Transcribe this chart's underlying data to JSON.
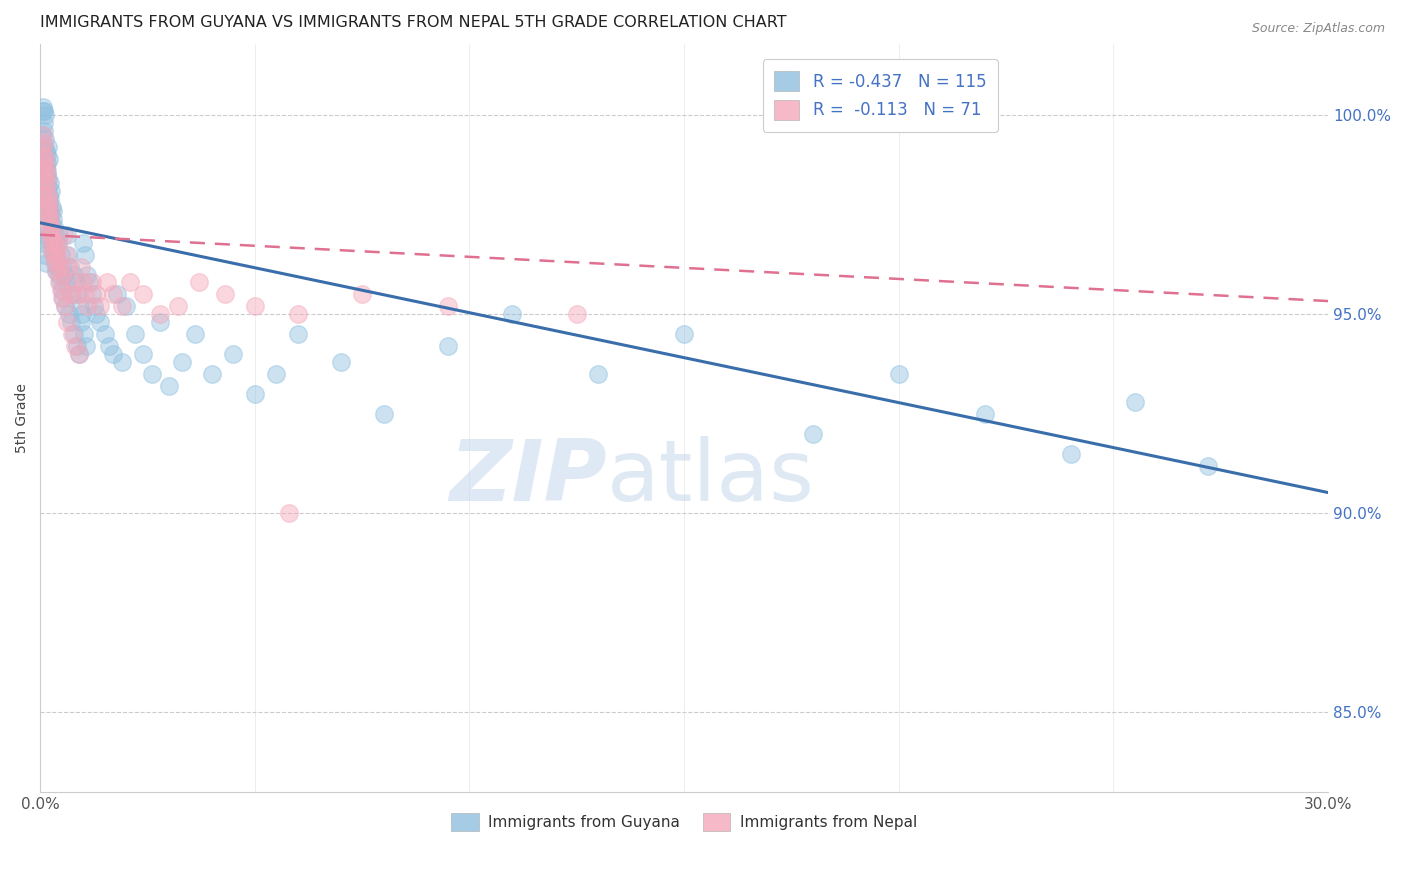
{
  "title": "IMMIGRANTS FROM GUYANA VS IMMIGRANTS FROM NEPAL 5TH GRADE CORRELATION CHART",
  "source": "Source: ZipAtlas.com",
  "ylabel": "5th Grade",
  "watermark_zip": "ZIP",
  "watermark_atlas": "atlas",
  "xlim": [
    0.0,
    30.0
  ],
  "ylim": [
    83.0,
    101.8
  ],
  "yticks": [
    85.0,
    90.0,
    95.0,
    100.0
  ],
  "ytick_labels": [
    "85.0%",
    "90.0%",
    "95.0%",
    "100.0%"
  ],
  "guyana_R": -0.437,
  "guyana_N": 115,
  "nepal_R": -0.113,
  "nepal_N": 71,
  "guyana_color": "#8FBFDF",
  "nepal_color": "#F4A8BA",
  "guyana_line_color": "#3A6EAB",
  "nepal_line_color": "#E07090",
  "legend_label_guyana": "Immigrants from Guyana",
  "legend_label_nepal": "Immigrants from Nepal",
  "guyana_x": [
    0.05,
    0.06,
    0.07,
    0.08,
    0.09,
    0.1,
    0.1,
    0.11,
    0.12,
    0.12,
    0.13,
    0.14,
    0.15,
    0.15,
    0.16,
    0.17,
    0.18,
    0.18,
    0.19,
    0.2,
    0.2,
    0.21,
    0.22,
    0.22,
    0.23,
    0.24,
    0.25,
    0.25,
    0.26,
    0.27,
    0.28,
    0.29,
    0.3,
    0.3,
    0.31,
    0.32,
    0.33,
    0.34,
    0.35,
    0.36,
    0.37,
    0.38,
    0.4,
    0.42,
    0.43,
    0.45,
    0.47,
    0.48,
    0.5,
    0.52,
    0.54,
    0.55,
    0.57,
    0.6,
    0.62,
    0.65,
    0.67,
    0.7,
    0.72,
    0.75,
    0.78,
    0.8,
    0.83,
    0.85,
    0.88,
    0.9,
    0.92,
    0.95,
    0.98,
    1.0,
    1.02,
    1.05,
    1.08,
    1.1,
    1.15,
    1.2,
    1.25,
    1.3,
    1.4,
    1.5,
    1.6,
    1.7,
    1.8,
    1.9,
    2.0,
    2.2,
    2.4,
    2.6,
    2.8,
    3.0,
    3.3,
    3.6,
    4.0,
    4.5,
    5.0,
    5.5,
    6.0,
    7.0,
    8.0,
    9.5,
    11.0,
    13.0,
    15.0,
    18.0,
    20.0,
    22.0,
    24.0,
    25.5,
    27.2,
    0.08,
    0.09,
    0.1,
    0.11,
    0.13,
    0.14,
    0.16
  ],
  "guyana_y": [
    99.5,
    100.1,
    100.2,
    100.1,
    99.8,
    99.6,
    99.2,
    100.0,
    99.4,
    98.9,
    99.1,
    98.7,
    99.0,
    98.5,
    98.8,
    98.6,
    98.4,
    99.2,
    98.2,
    98.0,
    98.9,
    97.8,
    97.6,
    98.3,
    97.5,
    97.9,
    97.3,
    98.1,
    97.1,
    97.7,
    97.0,
    97.4,
    96.8,
    97.6,
    96.6,
    97.2,
    96.5,
    97.0,
    96.3,
    96.8,
    96.1,
    96.5,
    96.2,
    96.8,
    96.0,
    97.0,
    95.8,
    96.5,
    95.6,
    96.2,
    95.4,
    96.0,
    95.2,
    95.8,
    97.0,
    96.5,
    95.0,
    96.2,
    94.8,
    95.5,
    96.0,
    94.5,
    95.8,
    94.2,
    95.5,
    94.0,
    95.2,
    94.8,
    95.0,
    96.8,
    94.5,
    96.5,
    94.2,
    96.0,
    95.8,
    95.5,
    95.2,
    95.0,
    94.8,
    94.5,
    94.2,
    94.0,
    95.5,
    93.8,
    95.2,
    94.5,
    94.0,
    93.5,
    94.8,
    93.2,
    93.8,
    94.5,
    93.5,
    94.0,
    93.0,
    93.5,
    94.5,
    93.8,
    92.5,
    94.2,
    95.0,
    93.5,
    94.5,
    92.0,
    93.5,
    92.5,
    91.5,
    92.8,
    91.2,
    97.2,
    96.8,
    97.5,
    96.5,
    97.0,
    96.3,
    96.9
  ],
  "nepal_x": [
    0.05,
    0.06,
    0.07,
    0.08,
    0.09,
    0.1,
    0.1,
    0.11,
    0.12,
    0.13,
    0.14,
    0.15,
    0.15,
    0.16,
    0.17,
    0.18,
    0.19,
    0.2,
    0.21,
    0.22,
    0.23,
    0.24,
    0.25,
    0.26,
    0.27,
    0.28,
    0.3,
    0.32,
    0.34,
    0.36,
    0.38,
    0.4,
    0.42,
    0.44,
    0.46,
    0.48,
    0.5,
    0.52,
    0.55,
    0.58,
    0.6,
    0.63,
    0.66,
    0.7,
    0.74,
    0.78,
    0.82,
    0.86,
    0.9,
    0.95,
    1.0,
    1.05,
    1.1,
    1.2,
    1.3,
    1.4,
    1.55,
    1.7,
    1.9,
    2.1,
    2.4,
    2.8,
    3.2,
    3.7,
    4.3,
    5.0,
    6.0,
    7.5,
    9.5,
    12.5,
    5.8
  ],
  "nepal_y": [
    99.2,
    99.5,
    98.8,
    99.0,
    98.6,
    99.3,
    98.4,
    98.9,
    98.2,
    98.7,
    98.0,
    98.5,
    97.8,
    98.3,
    97.6,
    98.0,
    97.4,
    97.8,
    97.2,
    97.6,
    97.0,
    97.4,
    96.8,
    97.2,
    96.6,
    97.0,
    96.5,
    96.8,
    96.3,
    96.6,
    96.1,
    96.4,
    96.8,
    95.8,
    96.2,
    95.6,
    96.0,
    95.4,
    97.0,
    95.2,
    96.5,
    94.8,
    96.2,
    95.5,
    94.5,
    95.8,
    94.2,
    95.5,
    94.0,
    96.2,
    95.8,
    95.5,
    95.2,
    95.8,
    95.5,
    95.2,
    95.8,
    95.5,
    95.2,
    95.8,
    95.5,
    95.0,
    95.2,
    95.8,
    95.5,
    95.2,
    95.0,
    95.5,
    95.2,
    95.0,
    90.0
  ]
}
